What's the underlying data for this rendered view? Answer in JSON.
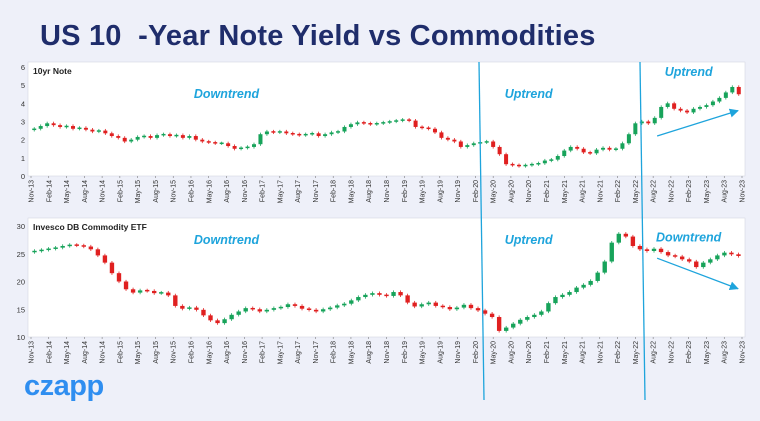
{
  "title": "US 10  -Year Note Yield vs Commodities",
  "brand": "czapp",
  "colors": {
    "up": "#17a35a",
    "down": "#e02020",
    "annotation": "#1ea4dc",
    "title": "#1f2d6b",
    "background": "#eef0f9",
    "panel": "#ffffff"
  },
  "chart_data": [
    {
      "type": "candlestick",
      "panel_label": "10yr Note",
      "ylim": [
        0,
        6
      ],
      "yticks": [
        0,
        1,
        2,
        3,
        4,
        5,
        6
      ],
      "grid": false,
      "x_tick_labels": [
        "Nov-13",
        "Feb-14",
        "May-14",
        "Aug-14",
        "Nov-14",
        "Feb-15",
        "May-15",
        "Aug-15",
        "Nov-15",
        "Feb-16",
        "May-16",
        "Aug-16",
        "Nov-16",
        "Feb-17",
        "May-17",
        "Aug-17",
        "Nov-17",
        "Feb-18",
        "May-18",
        "Aug-18",
        "Nov-18",
        "Feb-19",
        "May-19",
        "Aug-19",
        "Nov-19",
        "Feb-20",
        "May-20",
        "Aug-20",
        "Nov-20",
        "Feb-21",
        "May-21",
        "Aug-21",
        "Nov-21",
        "Feb-22",
        "May-22",
        "Aug-22",
        "Nov-22",
        "Feb-23",
        "May-23",
        "Aug-23",
        "Nov-23"
      ],
      "series_monthly": [
        2.6,
        2.75,
        2.9,
        2.8,
        2.7,
        2.75,
        2.6,
        2.65,
        2.55,
        2.45,
        2.5,
        2.35,
        2.2,
        2.1,
        1.9,
        2.0,
        2.15,
        2.2,
        2.1,
        2.25,
        2.3,
        2.2,
        2.25,
        2.1,
        2.2,
        2.0,
        1.9,
        1.85,
        1.8,
        1.8,
        1.65,
        1.5,
        1.55,
        1.6,
        1.75,
        2.3,
        2.45,
        2.4,
        2.45,
        2.35,
        2.3,
        2.25,
        2.3,
        2.35,
        2.2,
        2.3,
        2.4,
        2.45,
        2.7,
        2.85,
        2.95,
        2.9,
        2.85,
        2.9,
        2.95,
        3.0,
        3.05,
        3.1,
        3.05,
        2.7,
        2.65,
        2.6,
        2.4,
        2.1,
        2.0,
        1.9,
        1.6,
        1.7,
        1.8,
        1.85,
        1.9,
        1.6,
        1.2,
        0.65,
        0.6,
        0.55,
        0.6,
        0.65,
        0.7,
        0.85,
        0.9,
        1.1,
        1.4,
        1.6,
        1.5,
        1.3,
        1.25,
        1.45,
        1.55,
        1.45,
        1.5,
        1.8,
        2.3,
        2.9,
        3.0,
        2.9,
        3.2,
        3.8,
        4.0,
        3.7,
        3.6,
        3.5,
        3.7,
        3.8,
        3.9,
        4.1,
        4.3,
        4.6,
        4.9,
        4.5
      ],
      "annotations": [
        {
          "text": "Downtrend",
          "x": "Aug-16",
          "y": 4.3
        },
        {
          "text": "Uptrend",
          "x": "Nov-20",
          "y": 4.3
        },
        {
          "text": "Uptrend",
          "x": "Feb-23",
          "y": 5.5
        }
      ],
      "trend_arrow": {
        "from": [
          "Aug-22",
          2.2
        ],
        "to": [
          "Nov-23",
          3.6
        ]
      }
    },
    {
      "type": "candlestick",
      "panel_label": "Invesco DB Commodity ETF",
      "ylim": [
        10,
        30
      ],
      "yticks": [
        10,
        15,
        20,
        25,
        30
      ],
      "grid": false,
      "x_tick_labels": [
        "Nov-13",
        "Feb-14",
        "May-14",
        "Aug-14",
        "Nov-14",
        "Feb-15",
        "May-15",
        "Aug-15",
        "Nov-15",
        "Feb-16",
        "May-16",
        "Aug-16",
        "Nov-16",
        "Feb-17",
        "May-17",
        "Aug-17",
        "Nov-17",
        "Feb-18",
        "May-18",
        "Aug-18",
        "Nov-18",
        "Feb-19",
        "May-19",
        "Aug-19",
        "Nov-19",
        "Feb-20",
        "May-20",
        "Aug-20",
        "Nov-20",
        "Feb-21",
        "May-21",
        "Aug-21",
        "Nov-21",
        "Feb-22",
        "May-22",
        "Aug-22",
        "Nov-22",
        "Feb-23",
        "May-23",
        "Aug-23",
        "Nov-23"
      ],
      "series_monthly": [
        25.5,
        25.7,
        25.9,
        26.1,
        26.4,
        26.6,
        26.5,
        26.3,
        25.8,
        24.7,
        23.4,
        21.5,
        20.0,
        18.6,
        18.0,
        18.4,
        18.3,
        17.9,
        18.0,
        17.5,
        15.6,
        15.1,
        15.3,
        14.9,
        13.9,
        13.0,
        12.5,
        13.2,
        14.0,
        14.6,
        15.2,
        15.0,
        14.6,
        14.9,
        15.2,
        15.4,
        15.9,
        15.6,
        15.1,
        14.9,
        14.6,
        15.0,
        15.3,
        15.7,
        16.0,
        16.6,
        17.2,
        17.6,
        17.9,
        17.6,
        17.4,
        18.1,
        17.5,
        16.2,
        15.5,
        15.9,
        16.2,
        15.6,
        15.4,
        15.0,
        15.3,
        15.8,
        15.2,
        14.8,
        14.2,
        13.6,
        11.1,
        11.7,
        12.4,
        13.1,
        13.6,
        14.0,
        14.6,
        16.1,
        17.2,
        17.6,
        18.1,
        18.9,
        19.4,
        20.1,
        21.6,
        23.6,
        27.0,
        28.6,
        28.1,
        26.4,
        25.8,
        25.5,
        25.9,
        25.3,
        24.7,
        24.5,
        24.0,
        23.6,
        22.6,
        23.4,
        24.0,
        24.7,
        25.2,
        24.9,
        24.6
      ],
      "annotations": [
        {
          "text": "Downtrend",
          "x": "Aug-16",
          "y": 26.8
        },
        {
          "text": "Uptrend",
          "x": "Nov-20",
          "y": 26.8
        },
        {
          "text": "Downtrend",
          "x": "Feb-23",
          "y": 27.2
        }
      ],
      "trend_arrow": {
        "from": [
          "Aug-22",
          24.2
        ],
        "to": [
          "Nov-23",
          18.7
        ]
      }
    }
  ]
}
